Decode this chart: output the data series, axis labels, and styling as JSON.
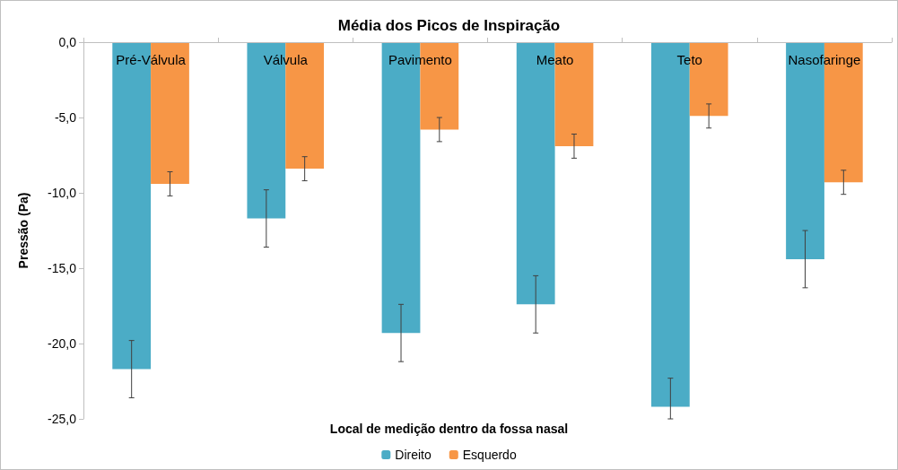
{
  "chart_data": {
    "type": "bar",
    "title": "Média dos Picos de Inspiração",
    "xlabel": "Local de medição dentro da fossa nasal",
    "ylabel": "Pressão (Pa)",
    "categories": [
      "Pré-Válvula",
      "Válvula",
      "Pavimento",
      "Meato",
      "Teto",
      "Nasofaringe"
    ],
    "series": [
      {
        "name": "Direito",
        "color": "#4bacc6",
        "values": [
          -21.7,
          -11.7,
          -19.3,
          -17.4,
          -24.2,
          -14.4
        ],
        "errors": [
          1.9,
          1.9,
          1.9,
          1.9,
          [
            -25.0,
            -22.3
          ],
          1.9
        ]
      },
      {
        "name": "Esquerdo",
        "color": "#f79646",
        "values": [
          -9.4,
          -8.4,
          -5.8,
          -6.9,
          -4.9,
          -9.3
        ],
        "errors": [
          0.8,
          0.8,
          0.8,
          0.8,
          0.8,
          0.8
        ]
      }
    ],
    "ylim": [
      -25,
      0
    ],
    "yticks": [
      {
        "value": 0,
        "label": "0,0"
      },
      {
        "value": -5,
        "label": "-5,0"
      },
      {
        "value": -10,
        "label": "-10,0"
      },
      {
        "value": -15,
        "label": "-15,0"
      },
      {
        "value": -20,
        "label": "-20,0"
      },
      {
        "value": -25,
        "label": "-25,0"
      }
    ],
    "grid": false,
    "legend": "bottom"
  }
}
